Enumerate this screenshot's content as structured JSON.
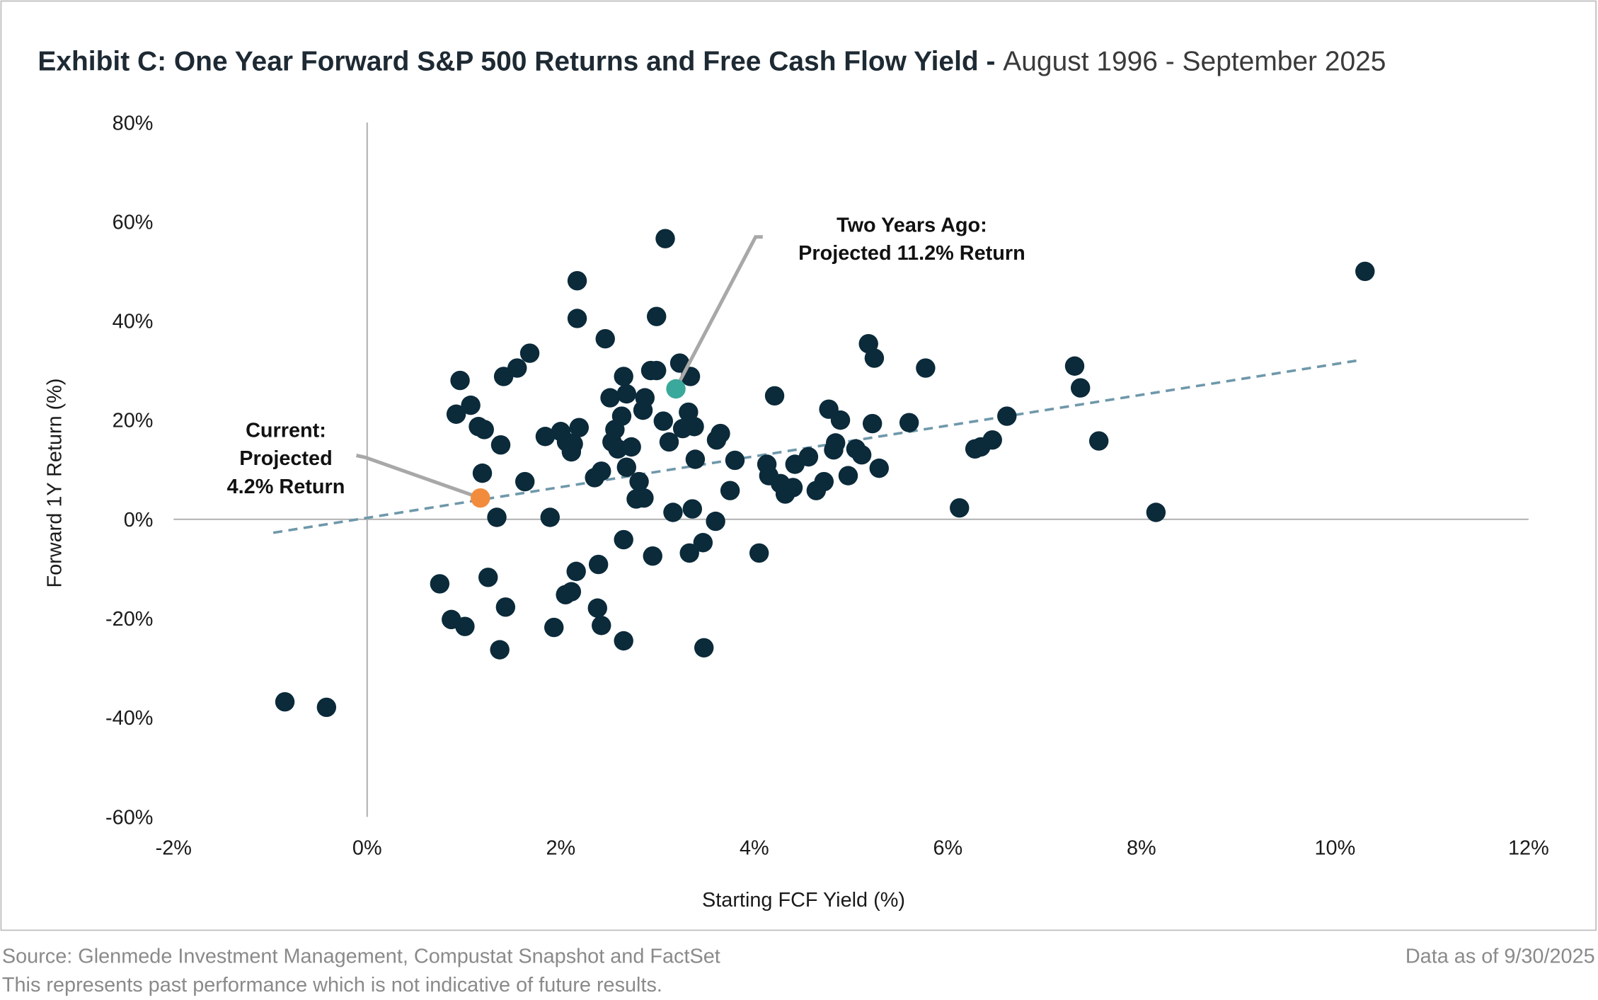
{
  "chart_data": {
    "type": "scatter",
    "title": "Exhibit C:  One Year Forward S&P 500 Returns and Free Cash Flow Yield",
    "title_separator": " - ",
    "subtitle": "August 1996 - September 2025",
    "xlabel": "Starting FCF Yield (%)",
    "ylabel": "Forward 1Y Return (%)",
    "xlim": [
      -2,
      12
    ],
    "ylim": [
      -60,
      80
    ],
    "xticks": [
      -2,
      0,
      2,
      4,
      6,
      8,
      10,
      12
    ],
    "yticks": [
      -60,
      -40,
      -20,
      0,
      20,
      40,
      60,
      80
    ],
    "xtick_labels": [
      "-2%",
      "0%",
      "2%",
      "4%",
      "6%",
      "8%",
      "10%",
      "12%"
    ],
    "ytick_labels": [
      "-60%",
      "-40%",
      "-20%",
      "0%",
      "20%",
      "40%",
      "60%",
      "80%"
    ],
    "grid": false,
    "point_color": "#0b2a3a",
    "trendline": {
      "style": "dashed",
      "color": "#6f98aa",
      "slope": 3.1,
      "intercept": 0.3,
      "x_range": [
        -0.97,
        10.28
      ]
    },
    "points": [
      [
        -0.85,
        -36.8
      ],
      [
        -0.42,
        -37.9
      ],
      [
        0.75,
        -13.0
      ],
      [
        0.87,
        -20.2
      ],
      [
        1.01,
        -21.6
      ],
      [
        0.92,
        21.2
      ],
      [
        0.96,
        28.0
      ],
      [
        1.07,
        23.0
      ],
      [
        1.15,
        18.7
      ],
      [
        1.21,
        18.1
      ],
      [
        1.19,
        9.3
      ],
      [
        1.25,
        -11.7
      ],
      [
        1.34,
        0.4
      ],
      [
        1.38,
        15.0
      ],
      [
        1.41,
        28.8
      ],
      [
        1.43,
        -17.7
      ],
      [
        1.37,
        -26.3
      ],
      [
        1.55,
        30.5
      ],
      [
        1.63,
        7.6
      ],
      [
        1.68,
        33.5
      ],
      [
        1.84,
        16.7
      ],
      [
        1.89,
        0.4
      ],
      [
        1.93,
        -21.8
      ],
      [
        2.0,
        17.7
      ],
      [
        2.05,
        -15.2
      ],
      [
        2.11,
        -14.6
      ],
      [
        2.06,
        15.6
      ],
      [
        2.11,
        13.6
      ],
      [
        2.13,
        15.2
      ],
      [
        2.17,
        48.1
      ],
      [
        2.17,
        40.5
      ],
      [
        2.19,
        18.5
      ],
      [
        2.16,
        -10.5
      ],
      [
        2.35,
        8.4
      ],
      [
        2.39,
        -9.1
      ],
      [
        2.38,
        -17.9
      ],
      [
        2.42,
        9.7
      ],
      [
        2.42,
        -21.4
      ],
      [
        2.46,
        36.4
      ],
      [
        2.51,
        24.5
      ],
      [
        2.53,
        15.6
      ],
      [
        2.56,
        18.1
      ],
      [
        2.59,
        14.2
      ],
      [
        2.63,
        20.8
      ],
      [
        2.65,
        28.8
      ],
      [
        2.65,
        -4.1
      ],
      [
        2.65,
        -24.5
      ],
      [
        2.68,
        25.3
      ],
      [
        2.68,
        10.5
      ],
      [
        2.73,
        14.6
      ],
      [
        2.78,
        4.1
      ],
      [
        2.81,
        7.6
      ],
      [
        2.85,
        22.0
      ],
      [
        2.86,
        4.3
      ],
      [
        2.87,
        24.5
      ],
      [
        2.93,
        30.0
      ],
      [
        2.99,
        30.0
      ],
      [
        2.95,
        -7.4
      ],
      [
        2.99,
        40.9
      ],
      [
        3.06,
        19.8
      ],
      [
        3.08,
        56.6
      ],
      [
        3.12,
        15.6
      ],
      [
        3.16,
        1.4
      ],
      [
        3.23,
        31.5
      ],
      [
        3.26,
        18.3
      ],
      [
        3.32,
        21.6
      ],
      [
        3.33,
        -6.8
      ],
      [
        3.34,
        28.8
      ],
      [
        3.36,
        2.1
      ],
      [
        3.38,
        18.7
      ],
      [
        3.39,
        12.1
      ],
      [
        3.47,
        -4.7
      ],
      [
        3.48,
        -25.9
      ],
      [
        3.6,
        -0.4
      ],
      [
        3.61,
        16.0
      ],
      [
        3.65,
        17.3
      ],
      [
        3.75,
        5.8
      ],
      [
        3.8,
        11.9
      ],
      [
        4.05,
        -6.8
      ],
      [
        4.13,
        11.1
      ],
      [
        4.15,
        8.8
      ],
      [
        4.21,
        24.9
      ],
      [
        4.27,
        7.2
      ],
      [
        4.32,
        5.1
      ],
      [
        4.4,
        6.4
      ],
      [
        4.42,
        11.1
      ],
      [
        4.56,
        12.6
      ],
      [
        4.64,
        5.8
      ],
      [
        4.72,
        7.6
      ],
      [
        4.77,
        22.2
      ],
      [
        4.82,
        14.0
      ],
      [
        4.84,
        15.4
      ],
      [
        4.89,
        20.0
      ],
      [
        4.97,
        8.8
      ],
      [
        5.05,
        14.2
      ],
      [
        5.11,
        13.0
      ],
      [
        5.18,
        35.4
      ],
      [
        5.22,
        19.3
      ],
      [
        5.24,
        32.5
      ],
      [
        5.29,
        10.3
      ],
      [
        5.6,
        19.5
      ],
      [
        5.77,
        30.5
      ],
      [
        6.12,
        2.3
      ],
      [
        6.28,
        14.2
      ],
      [
        6.34,
        14.6
      ],
      [
        6.46,
        16.0
      ],
      [
        6.61,
        20.8
      ],
      [
        7.31,
        30.9
      ],
      [
        7.37,
        26.5
      ],
      [
        7.56,
        15.8
      ],
      [
        8.15,
        1.4
      ],
      [
        10.31,
        50.0
      ]
    ],
    "highlights": [
      {
        "label_lines": [
          "Current:",
          "Projected",
          "4.2% Return"
        ],
        "x": 1.17,
        "y": 4.3,
        "color": "#f28c3c"
      },
      {
        "label_lines": [
          "Two Years Ago:",
          "Projected 11.2% Return"
        ],
        "x": 3.19,
        "y": 26.3,
        "color": "#3aa89a"
      }
    ]
  },
  "footer": {
    "source": "Source: Glenmede Investment Management, Compustat Snapshot and FactSet",
    "disclaimer": "This represents past performance which is not indicative of future results.",
    "data_as_of": "Data as of 9/30/2025"
  }
}
